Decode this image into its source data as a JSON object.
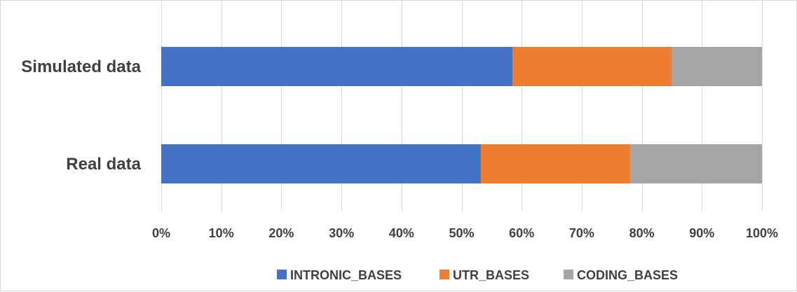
{
  "chart_data": {
    "type": "bar",
    "orientation": "horizontal",
    "stacked": "100%",
    "categories": [
      "Simulated data",
      "Real data"
    ],
    "series": [
      {
        "name": "INTRONIC_BASES",
        "color": "#4472C4",
        "values": [
          58.5,
          53.2
        ]
      },
      {
        "name": "UTR_BASES",
        "color": "#ED7D31",
        "values": [
          26.5,
          24.9
        ]
      },
      {
        "name": "CODING_BASES",
        "color": "#A5A5A5",
        "values": [
          15.0,
          21.9
        ]
      }
    ],
    "xlim": [
      0,
      100
    ],
    "x_ticks": [
      "0%",
      "10%",
      "20%",
      "30%",
      "40%",
      "50%",
      "60%",
      "70%",
      "80%",
      "90%",
      "100%"
    ],
    "grid": true,
    "legend_position": "bottom",
    "title": "",
    "xlabel": "",
    "ylabel": ""
  }
}
